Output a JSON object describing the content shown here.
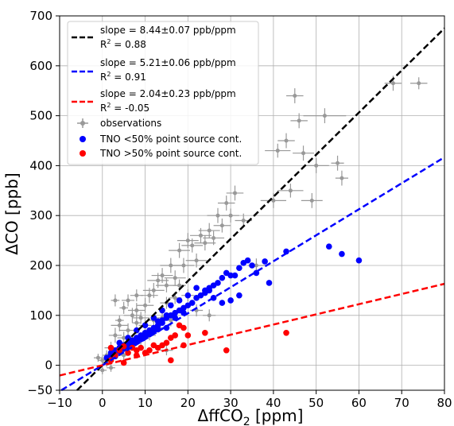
{
  "chart_data": {
    "type": "scatter",
    "xlabel": "ΔffCO₂ [ppm]",
    "ylabel": "ΔCO [ppb]",
    "xlim": [
      -10,
      80
    ],
    "ylim": [
      -50,
      700
    ],
    "xticks": [
      "−10",
      "0",
      "10",
      "20",
      "30",
      "40",
      "50",
      "60",
      "70",
      "80"
    ],
    "yticks": [
      "−50",
      "0",
      "100",
      "200",
      "300",
      "400",
      "500",
      "600",
      "700"
    ],
    "grid": true,
    "legend_position": "top-left",
    "fit_lines": [
      {
        "slope_label": "slope = 8.44±0.07 ppb/ppm",
        "r2_label": "R² = 0.88",
        "slope": 8.44,
        "intercept": 0,
        "color": "#000000"
      },
      {
        "slope_label": "slope = 5.21±0.06 ppb/ppm",
        "r2_label": "R² = 0.91",
        "slope": 5.21,
        "intercept": 0,
        "color": "#0000ff"
      },
      {
        "slope_label": "slope = 2.04±0.23 ppb/ppm",
        "r2_label": "R² = -0.05",
        "slope": 2.04,
        "intercept": 0,
        "color": "#ff0000"
      }
    ],
    "series": [
      {
        "name": "observations",
        "color": "#999999",
        "points": [
          [
            1,
            20,
            1,
            10
          ],
          [
            2,
            35,
            1.5,
            12
          ],
          [
            3,
            60,
            1.5,
            15
          ],
          [
            4,
            80,
            2,
            12
          ],
          [
            5,
            55,
            1.5,
            12
          ],
          [
            6,
            70,
            2,
            14
          ],
          [
            7,
            100,
            2,
            15
          ],
          [
            8,
            110,
            2,
            15
          ],
          [
            9,
            95,
            2,
            12
          ],
          [
            10,
            120,
            2,
            15
          ],
          [
            11,
            140,
            2,
            15
          ],
          [
            12,
            150,
            2.5,
            15
          ],
          [
            13,
            170,
            2.5,
            15
          ],
          [
            14,
            180,
            2.5,
            15
          ],
          [
            15,
            160,
            2.5,
            14
          ],
          [
            16,
            200,
            2.5,
            15
          ],
          [
            17,
            175,
            2.5,
            15
          ],
          [
            18,
            230,
            2.5,
            15
          ],
          [
            19,
            200,
            2.5,
            15
          ],
          [
            20,
            250,
            2.5,
            15
          ],
          [
            21,
            240,
            2.5,
            14
          ],
          [
            22,
            210,
            2.5,
            14
          ],
          [
            23,
            260,
            2.5,
            15
          ],
          [
            24,
            245,
            2.5,
            15
          ],
          [
            25,
            270,
            2.5,
            15
          ],
          [
            26,
            255,
            2.5,
            14
          ],
          [
            27,
            300,
            2.5,
            15
          ],
          [
            28,
            280,
            2,
            14
          ],
          [
            29,
            325,
            2,
            15
          ],
          [
            30,
            300,
            2,
            14
          ],
          [
            31,
            345,
            2,
            15
          ],
          [
            33,
            290,
            2,
            14
          ],
          [
            36,
            200,
            2,
            14
          ],
          [
            40,
            330,
            3,
            15
          ],
          [
            41,
            430,
            3,
            14
          ],
          [
            43,
            450,
            2,
            15
          ],
          [
            44,
            350,
            3,
            14
          ],
          [
            45,
            540,
            2,
            15
          ],
          [
            46,
            490,
            2,
            15
          ],
          [
            47,
            425,
            2.5,
            15
          ],
          [
            49,
            330,
            2.5,
            15
          ],
          [
            50,
            400,
            3,
            15
          ],
          [
            52,
            500,
            5,
            15
          ],
          [
            55,
            405,
            1.5,
            15
          ],
          [
            56,
            375,
            1.5,
            15
          ],
          [
            68,
            565,
            2,
            15
          ],
          [
            74,
            565,
            2,
            12
          ],
          [
            0,
            10,
            1,
            8
          ],
          [
            1,
            5,
            1,
            8
          ],
          [
            2,
            -5,
            1,
            8
          ],
          [
            0,
            -10,
            1,
            8
          ],
          [
            -1,
            15,
            1,
            8
          ],
          [
            3,
            130,
            1,
            12
          ],
          [
            5,
            115,
            1,
            12
          ],
          [
            6,
            130,
            1.5,
            12
          ],
          [
            8,
            140,
            1.5,
            12
          ],
          [
            16,
            90,
            1.5,
            12
          ],
          [
            17,
            135,
            1.5,
            12
          ],
          [
            20,
            140,
            1.5,
            12
          ],
          [
            22,
            110,
            1.5,
            12
          ],
          [
            25,
            100,
            1.5,
            12
          ],
          [
            5,
            20,
            1,
            10
          ],
          [
            7,
            40,
            1,
            10
          ],
          [
            9,
            50,
            1,
            10
          ],
          [
            10,
            80,
            1.5,
            12
          ],
          [
            12,
            90,
            1.5,
            12
          ],
          [
            14,
            95,
            1.5,
            12
          ],
          [
            15,
            125,
            1.5,
            12
          ],
          [
            18,
            160,
            1.5,
            12
          ],
          [
            11,
            60,
            1.5,
            10
          ],
          [
            13,
            75,
            1.5,
            10
          ],
          [
            4,
            90,
            1,
            10
          ],
          [
            6,
            45,
            1,
            10
          ],
          [
            8,
            85,
            1,
            10
          ],
          [
            15,
            30,
            1.5,
            10
          ]
        ]
      },
      {
        "name": "TNO <50% point source cont.",
        "color": "#0000ff",
        "points": [
          [
            1,
            15
          ],
          [
            2,
            20
          ],
          [
            2,
            25
          ],
          [
            3,
            30
          ],
          [
            3,
            18
          ],
          [
            4,
            35
          ],
          [
            4,
            28
          ],
          [
            5,
            40
          ],
          [
            5,
            33
          ],
          [
            6,
            45
          ],
          [
            6,
            38
          ],
          [
            7,
            50
          ],
          [
            7,
            42
          ],
          [
            8,
            55
          ],
          [
            8,
            48
          ],
          [
            9,
            60
          ],
          [
            9,
            52
          ],
          [
            10,
            65
          ],
          [
            10,
            58
          ],
          [
            11,
            70
          ],
          [
            11,
            62
          ],
          [
            12,
            75
          ],
          [
            12,
            68
          ],
          [
            13,
            80
          ],
          [
            13,
            72
          ],
          [
            14,
            85
          ],
          [
            14,
            90
          ],
          [
            15,
            95
          ],
          [
            15,
            100
          ],
          [
            16,
            100
          ],
          [
            17,
            105
          ],
          [
            18,
            110
          ],
          [
            19,
            115
          ],
          [
            20,
            120
          ],
          [
            21,
            125
          ],
          [
            22,
            135
          ],
          [
            23,
            140
          ],
          [
            24,
            145
          ],
          [
            25,
            150
          ],
          [
            25,
            155
          ],
          [
            26,
            160
          ],
          [
            27,
            165
          ],
          [
            28,
            175
          ],
          [
            29,
            185
          ],
          [
            30,
            180
          ],
          [
            31,
            180
          ],
          [
            32,
            195
          ],
          [
            33,
            205
          ],
          [
            34,
            210
          ],
          [
            35,
            200
          ],
          [
            36,
            185
          ],
          [
            38,
            208
          ],
          [
            39,
            165
          ],
          [
            43,
            228
          ],
          [
            53,
            238
          ],
          [
            56,
            223
          ],
          [
            60,
            210
          ],
          [
            14,
            110
          ],
          [
            16,
            120
          ],
          [
            18,
            130
          ],
          [
            20,
            140
          ],
          [
            22,
            155
          ],
          [
            24,
            150
          ],
          [
            26,
            135
          ],
          [
            28,
            125
          ],
          [
            30,
            130
          ],
          [
            32,
            140
          ],
          [
            12,
            95
          ],
          [
            10,
            80
          ],
          [
            8,
            70
          ],
          [
            6,
            55
          ],
          [
            4,
            45
          ],
          [
            13,
            88
          ],
          [
            15,
            75
          ],
          [
            17,
            95
          ],
          [
            19,
            105
          ]
        ]
      },
      {
        "name": "TNO >50% point source cont.",
        "color": "#ff0000",
        "points": [
          [
            2,
            35
          ],
          [
            3,
            20
          ],
          [
            4,
            30
          ],
          [
            5,
            38
          ],
          [
            6,
            25
          ],
          [
            7,
            35
          ],
          [
            8,
            30
          ],
          [
            9,
            35
          ],
          [
            10,
            25
          ],
          [
            11,
            30
          ],
          [
            12,
            40
          ],
          [
            13,
            35
          ],
          [
            14,
            40
          ],
          [
            15,
            45
          ],
          [
            16,
            55
          ],
          [
            17,
            60
          ],
          [
            18,
            80
          ],
          [
            19,
            75
          ],
          [
            20,
            60
          ],
          [
            16,
            10
          ],
          [
            19,
            40
          ],
          [
            24,
            65
          ],
          [
            29,
            30
          ],
          [
            43,
            65
          ],
          [
            2,
            10
          ],
          [
            5,
            5
          ],
          [
            8,
            20
          ]
        ]
      }
    ]
  }
}
